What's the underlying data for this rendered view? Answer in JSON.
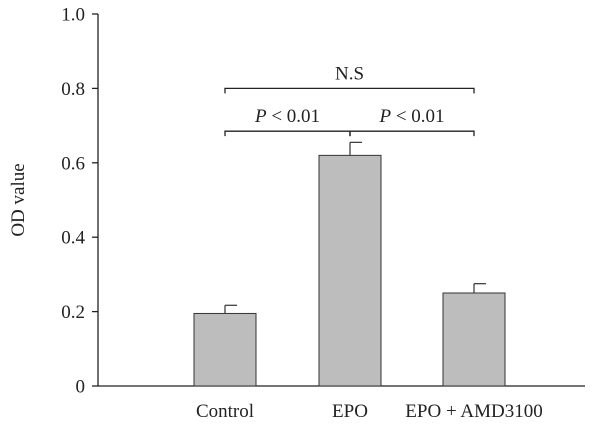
{
  "chart_data": {
    "type": "bar",
    "categories": [
      "Control",
      "EPO",
      "EPO + AMD3100"
    ],
    "values": [
      0.195,
      0.62,
      0.25
    ],
    "error": [
      0.022,
      0.035,
      0.025
    ],
    "ylabel": "OD value",
    "xlabel": "",
    "ylim": [
      0,
      1.0
    ],
    "yticks": [
      "0",
      "0.2",
      "0.4",
      "0.6",
      "0.8",
      "1.0"
    ],
    "bar_color": "#bdbdbd",
    "grid": false,
    "annotations": [
      {
        "from": 0,
        "to": 2,
        "label": "N.S",
        "italic_prefix": "",
        "rest": "N.S",
        "level": 0.8
      },
      {
        "from": 0,
        "to": 1,
        "label": "P < 0.01",
        "italic_prefix": "P",
        "rest": " < 0.01",
        "level": 0.685
      },
      {
        "from": 1,
        "to": 2,
        "label": "P < 0.01",
        "italic_prefix": "P",
        "rest": " < 0.01",
        "level": 0.685
      }
    ]
  }
}
